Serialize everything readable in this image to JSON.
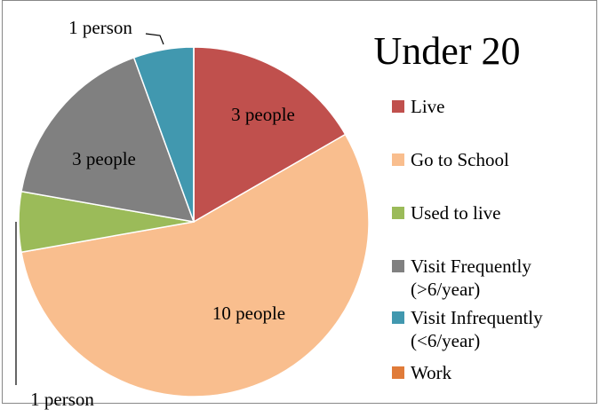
{
  "chart_data": {
    "type": "pie",
    "title": "Under 20",
    "categories": [
      "Live",
      "Go to School",
      "Used to live",
      "Visit Frequently (>6/year)",
      "Visit Infrequently (<6/year)",
      "Work"
    ],
    "values": [
      3,
      10,
      1,
      3,
      1,
      0
    ],
    "value_labels": [
      "3 people",
      "10 people",
      "1 person",
      "3 people",
      "1 person",
      null
    ],
    "colors": [
      "#c0504d",
      "#f9be8e",
      "#9bbb59",
      "#808080",
      "#4198af",
      "#e07b39"
    ],
    "legend": "right"
  }
}
